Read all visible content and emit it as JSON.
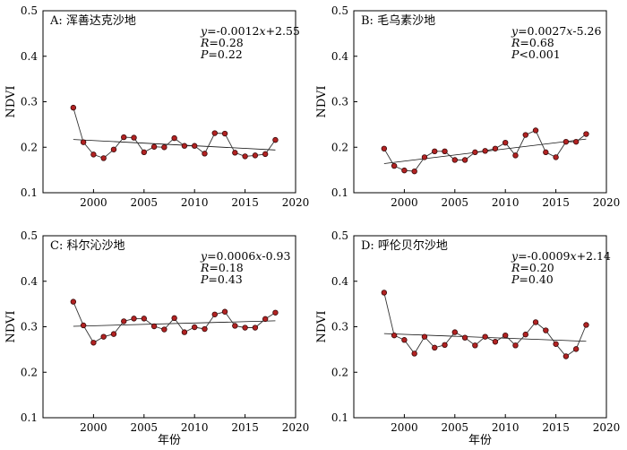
{
  "colors": {
    "marker_fill": "#b22222",
    "marker_stroke": "#3a0a0a",
    "line": "#333333"
  },
  "chart_data": [
    {
      "type": "line",
      "title": "A: 浑善达克沙地",
      "xlabel": "",
      "ylabel": "NDVI",
      "xlim": [
        1995,
        2020
      ],
      "ylim": [
        0.1,
        0.5
      ],
      "xticks": [
        "2000",
        "2005",
        "2010",
        "2015",
        "2020"
      ],
      "yticks": [
        "0.1",
        "0.2",
        "0.3",
        "0.4",
        "0.5"
      ],
      "x": [
        1998,
        1999,
        2000,
        2001,
        2002,
        2003,
        2004,
        2005,
        2006,
        2007,
        2008,
        2009,
        2010,
        2011,
        2012,
        2013,
        2014,
        2015,
        2016,
        2017,
        2018
      ],
      "values": [
        0.287,
        0.211,
        0.184,
        0.176,
        0.195,
        0.222,
        0.221,
        0.189,
        0.201,
        0.2,
        0.22,
        0.203,
        0.203,
        0.186,
        0.231,
        0.23,
        0.188,
        0.18,
        0.182,
        0.185,
        0.216
      ],
      "trend": {
        "x": [
          1998,
          2018
        ],
        "y": [
          0.217,
          0.194
        ]
      },
      "stats": {
        "eq_pre": "y",
        "eq_rest": "=-0.0012",
        "eq_var": "x",
        "eq_post": "+2.55",
        "r_label": "R",
        "r_val": "=0.28",
        "p_label": "P",
        "p_val": "=0.22"
      }
    },
    {
      "type": "line",
      "title": "B: 毛乌素沙地",
      "xlabel": "",
      "ylabel": "NDVI",
      "xlim": [
        1995,
        2020
      ],
      "ylim": [
        0.1,
        0.5
      ],
      "xticks": [
        "2000",
        "2005",
        "2010",
        "2015",
        "2020"
      ],
      "yticks": [
        "0.1",
        "0.2",
        "0.3",
        "0.4",
        "0.5"
      ],
      "x": [
        1998,
        1999,
        2000,
        2001,
        2002,
        2003,
        2004,
        2005,
        2006,
        2007,
        2008,
        2009,
        2010,
        2011,
        2012,
        2013,
        2014,
        2015,
        2016,
        2017,
        2018
      ],
      "values": [
        0.197,
        0.159,
        0.149,
        0.147,
        0.178,
        0.191,
        0.191,
        0.172,
        0.172,
        0.189,
        0.192,
        0.197,
        0.21,
        0.182,
        0.227,
        0.237,
        0.189,
        0.178,
        0.212,
        0.212,
        0.229
      ],
      "trend": {
        "x": [
          1998,
          2018
        ],
        "y": [
          0.164,
          0.218
        ]
      },
      "stats": {
        "eq_pre": "y",
        "eq_rest": "=0.0027",
        "eq_var": "x",
        "eq_post": "-5.26",
        "r_label": "R",
        "r_val": "=0.68",
        "p_label": "P",
        "p_val": "<0.001"
      }
    },
    {
      "type": "line",
      "title": "C: 科尔沁沙地",
      "xlabel": "年份",
      "ylabel": "NDVI",
      "xlim": [
        1995,
        2020
      ],
      "ylim": [
        0.1,
        0.5
      ],
      "xticks": [
        "2000",
        "2005",
        "2010",
        "2015",
        "2020"
      ],
      "yticks": [
        "0.1",
        "0.2",
        "0.3",
        "0.4",
        "0.5"
      ],
      "x": [
        1998,
        1999,
        2000,
        2001,
        2002,
        2003,
        2004,
        2005,
        2006,
        2007,
        2008,
        2009,
        2010,
        2011,
        2012,
        2013,
        2014,
        2015,
        2016,
        2017,
        2018
      ],
      "values": [
        0.355,
        0.303,
        0.265,
        0.278,
        0.284,
        0.312,
        0.318,
        0.318,
        0.301,
        0.294,
        0.319,
        0.288,
        0.299,
        0.295,
        0.327,
        0.333,
        0.302,
        0.298,
        0.298,
        0.317,
        0.331
      ],
      "trend": {
        "x": [
          1998,
          2018
        ],
        "y": [
          0.301,
          0.313
        ]
      },
      "stats": {
        "eq_pre": "y",
        "eq_rest": "=0.0006",
        "eq_var": "x",
        "eq_post": "-0.93",
        "r_label": "R",
        "r_val": "=0.18",
        "p_label": "P",
        "p_val": "=0.43"
      }
    },
    {
      "type": "line",
      "title": "D: 呼伦贝尔沙地",
      "xlabel": "年份",
      "ylabel": "NDVI",
      "xlim": [
        1995,
        2020
      ],
      "ylim": [
        0.1,
        0.5
      ],
      "xticks": [
        "2000",
        "2005",
        "2010",
        "2015",
        "2020"
      ],
      "yticks": [
        "0.1",
        "0.2",
        "0.3",
        "0.4",
        "0.5"
      ],
      "x": [
        1998,
        1999,
        2000,
        2001,
        2002,
        2003,
        2004,
        2005,
        2006,
        2007,
        2008,
        2009,
        2010,
        2011,
        2012,
        2013,
        2014,
        2015,
        2016,
        2017,
        2018
      ],
      "values": [
        0.375,
        0.281,
        0.271,
        0.241,
        0.278,
        0.254,
        0.26,
        0.288,
        0.276,
        0.259,
        0.278,
        0.267,
        0.281,
        0.259,
        0.283,
        0.31,
        0.292,
        0.262,
        0.235,
        0.251,
        0.304
      ],
      "trend": {
        "x": [
          1998,
          2018
        ],
        "y": [
          0.285,
          0.268
        ]
      },
      "stats": {
        "eq_pre": "y",
        "eq_rest": "=-0.0009",
        "eq_var": "x",
        "eq_post": "+2.14",
        "r_label": "R",
        "r_val": "=0.20",
        "p_label": "P",
        "p_val": "=0.40"
      }
    }
  ]
}
